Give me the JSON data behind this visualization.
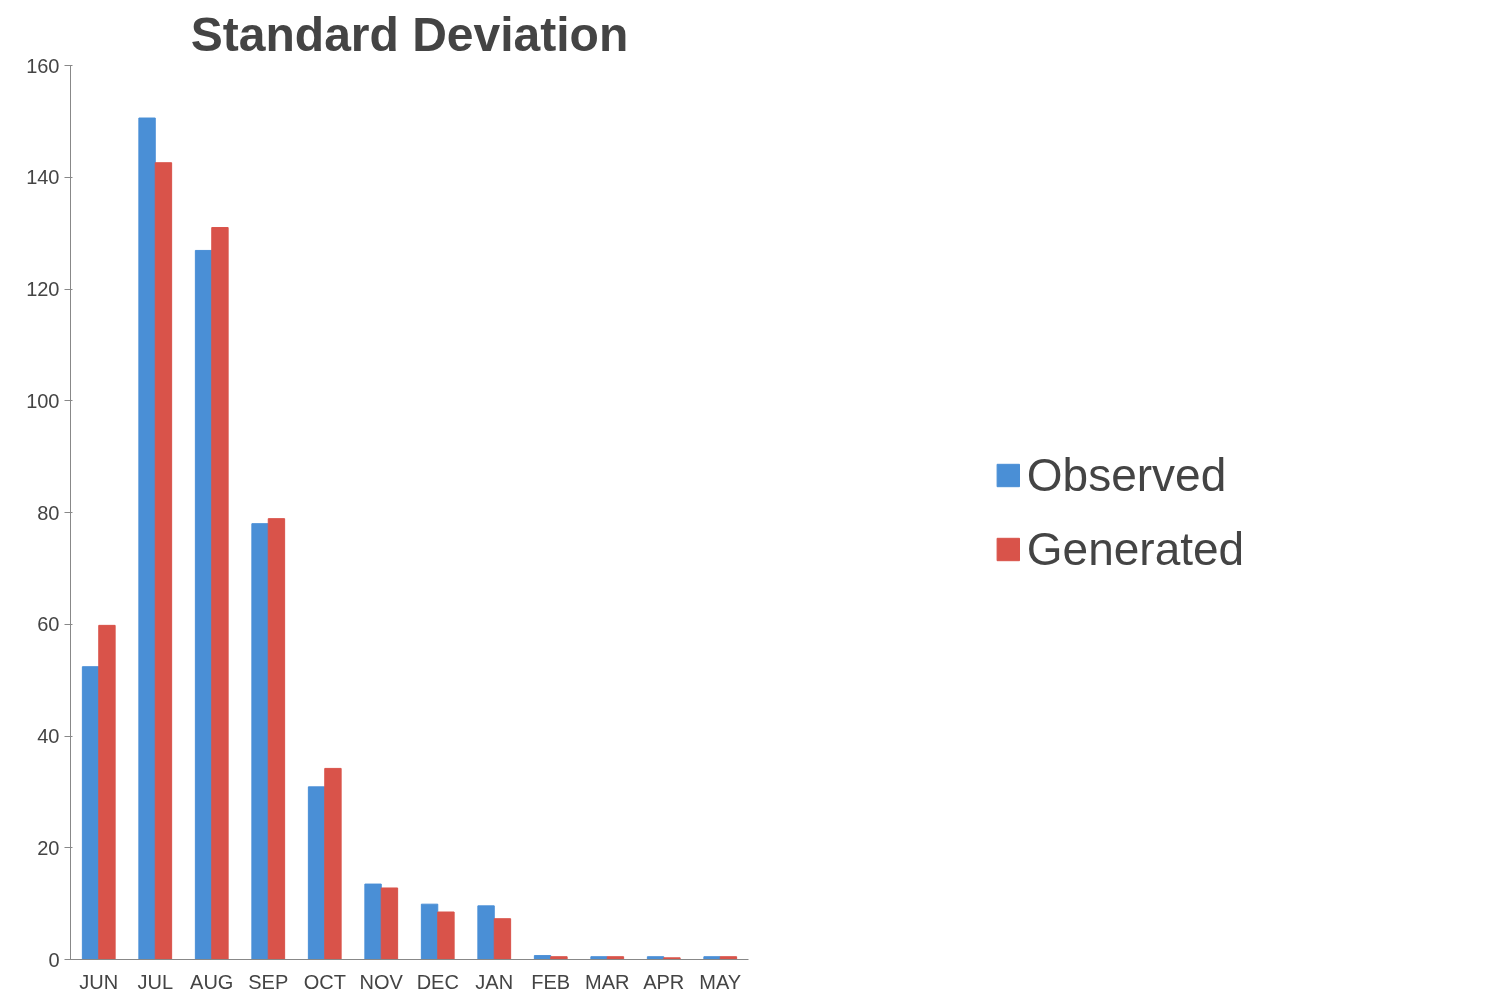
{
  "chart_data": {
    "type": "bar",
    "title": "Standard Deviation",
    "categories": [
      "JUN",
      "JUL",
      "AUG",
      "SEP",
      "OCT",
      "NOV",
      "DEC",
      "JAN",
      "FEB",
      "MAR",
      "APR",
      "MAY"
    ],
    "series": [
      {
        "name": "Observed",
        "color": "#4a8fd6",
        "values": [
          52.4,
          150.6,
          126.9,
          78.0,
          30.9,
          13.5,
          9.9,
          9.6,
          0.7,
          0.5,
          0.5,
          0.5
        ]
      },
      {
        "name": "Generated",
        "color": "#d9534a",
        "values": [
          59.8,
          142.6,
          131.0,
          78.9,
          34.2,
          12.8,
          8.5,
          7.3,
          0.5,
          0.5,
          0.3,
          0.5
        ]
      }
    ],
    "ylim": [
      0,
      160
    ],
    "yticks": [
      0,
      20,
      40,
      60,
      80,
      100,
      120,
      140,
      160
    ],
    "grid": false,
    "legend": "right"
  }
}
